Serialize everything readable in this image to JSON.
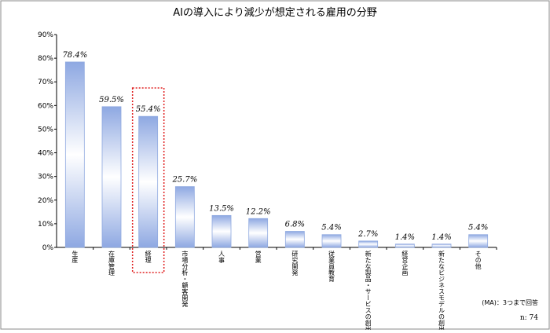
{
  "chart_data": {
    "type": "bar",
    "title": "AIの導入により減少が想定される雇用の分野",
    "categories": [
      "生産",
      "在庫管理",
      "経理",
      "市場分析・顧客開発",
      "人事",
      "営業",
      "研究開発",
      "従業員教育",
      "新たな製品・サービスの創出",
      "経営企画",
      "新たなビジネスモデルの創出",
      "その他"
    ],
    "values": [
      78.4,
      59.5,
      55.4,
      25.7,
      13.5,
      12.2,
      6.8,
      5.4,
      2.7,
      1.4,
      1.4,
      5.4
    ],
    "value_labels": [
      "78.4%",
      "59.5%",
      "55.4%",
      "25.7%",
      "13.5%",
      "12.2%",
      "6.8%",
      "5.4%",
      "2.7%",
      "1.4%",
      "1.4%",
      "5.4%"
    ],
    "color": "#8fa9e0",
    "ylim": [
      0,
      90
    ],
    "yticks": [
      {
        "value": 0,
        "label": "0%"
      },
      {
        "value": 10,
        "label": "10%"
      },
      {
        "value": 20,
        "label": "20%"
      },
      {
        "value": 30,
        "label": "30%"
      },
      {
        "value": 40,
        "label": "40%"
      },
      {
        "value": 50,
        "label": "50%"
      },
      {
        "value": 60,
        "label": "60%"
      },
      {
        "value": 70,
        "label": "70%"
      },
      {
        "value": 80,
        "label": "80%"
      },
      {
        "value": 90,
        "label": "90%"
      }
    ],
    "highlight_index": 2,
    "highlight_color": "#e02020",
    "notes": [
      "(MA)：3つまで回答",
      "n: 74"
    ]
  }
}
